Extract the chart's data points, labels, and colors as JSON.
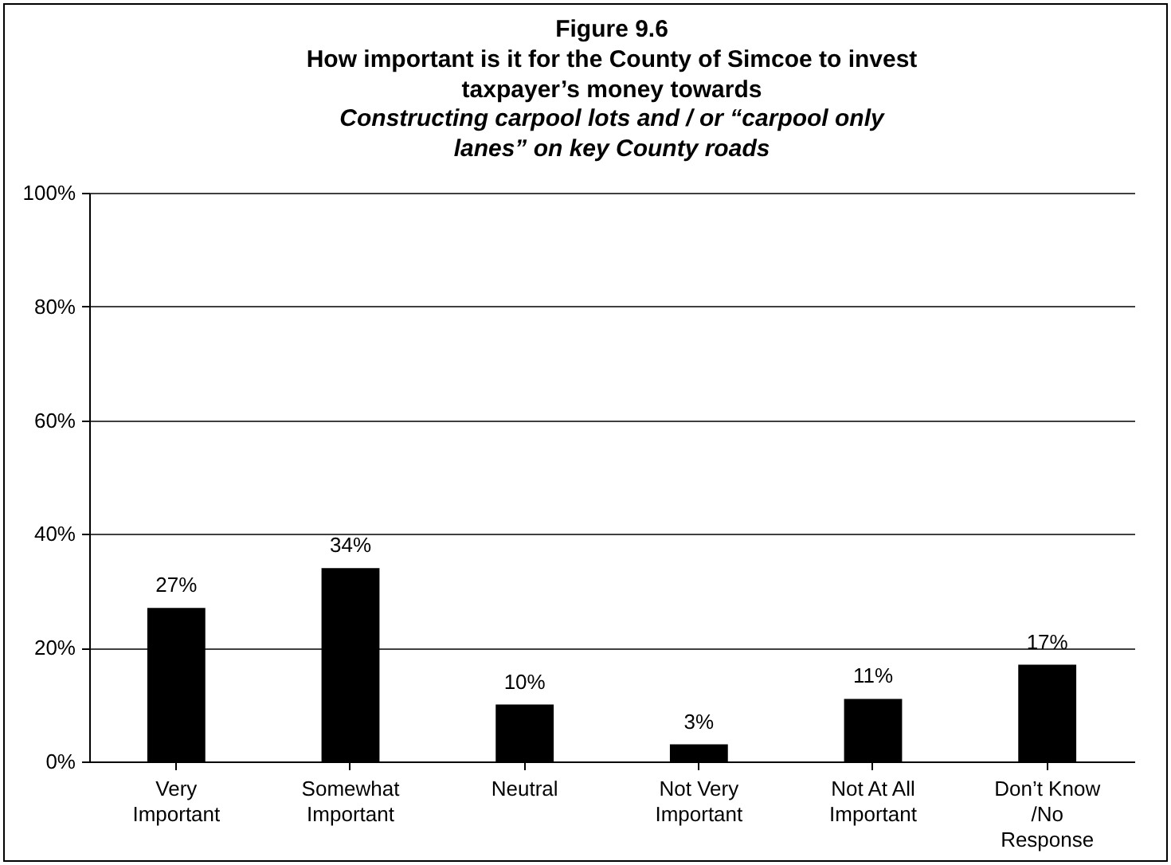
{
  "chart_data": {
    "type": "bar",
    "title": "Figure 9.6",
    "subtitle": "How important is it for the County of Simcoe to invest taxpayer’s money towards",
    "annotations": [
      "Constructing carpool lots and / or “carpool only lanes” on key County roads"
    ],
    "categories": [
      "Very Important",
      "Somewhat Important",
      "Neutral",
      "Not Very Important",
      "Not At All Important",
      "Don’t Know /No Response"
    ],
    "values": [
      27,
      34,
      10,
      3,
      11,
      17
    ],
    "color": "#000000",
    "value_labels": [
      "27%",
      "34%",
      "10%",
      "3%",
      "11%",
      "17%"
    ],
    "ylim": [
      0,
      100
    ],
    "yticks": [
      {
        "value": 0,
        "label": "0%"
      },
      {
        "value": 20,
        "label": "20%"
      },
      {
        "value": 40,
        "label": "40%"
      },
      {
        "value": 60,
        "label": "60%"
      },
      {
        "value": 80,
        "label": "80%"
      },
      {
        "value": 100,
        "label": "100%"
      }
    ],
    "grid": "y"
  }
}
